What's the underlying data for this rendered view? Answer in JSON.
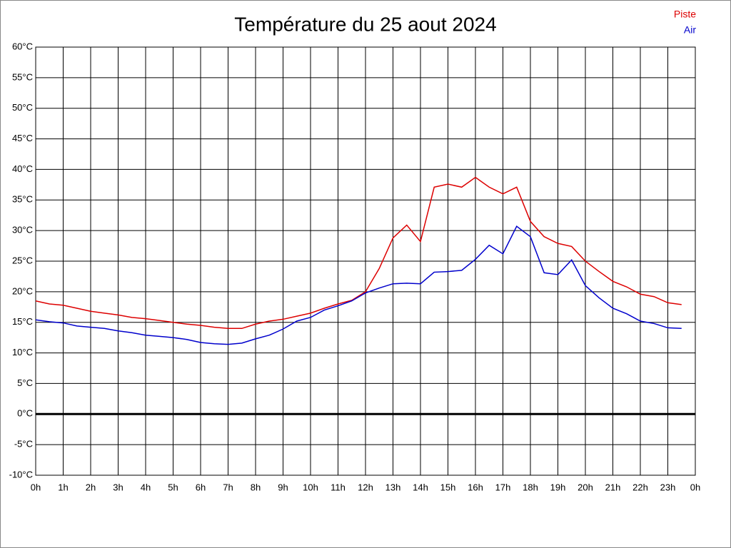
{
  "chart_data": {
    "type": "line",
    "title": "Température du 25 aout 2024",
    "x": [
      0,
      0.5,
      1,
      1.5,
      2,
      2.5,
      3,
      3.5,
      4,
      4.5,
      5,
      5.5,
      6,
      6.5,
      7,
      7.5,
      8,
      8.5,
      9,
      9.5,
      10,
      10.5,
      11,
      11.5,
      12,
      12.5,
      13,
      13.5,
      14,
      14.5,
      15,
      15.5,
      16,
      16.5,
      17,
      17.5,
      18,
      18.5,
      19,
      19.5,
      20,
      20.5,
      21,
      21.5,
      22,
      22.5,
      23,
      23.5
    ],
    "series": [
      {
        "name": "Piste",
        "color": "#dd0000",
        "values": [
          18.5,
          18.0,
          17.8,
          17.3,
          16.8,
          16.5,
          16.2,
          15.8,
          15.6,
          15.3,
          15.0,
          14.7,
          14.5,
          14.2,
          14.0,
          14.0,
          14.7,
          15.2,
          15.5,
          16.0,
          16.5,
          17.3,
          18.0,
          18.6,
          20.0,
          23.8,
          28.8,
          30.9,
          28.2,
          37.1,
          37.6,
          37.1,
          38.7,
          37.1,
          36.0,
          37.1,
          31.5,
          29.0,
          27.9,
          27.4,
          25.0,
          23.3,
          21.7,
          20.8,
          19.6,
          19.2,
          18.2,
          17.9
        ]
      },
      {
        "name": "Air",
        "color": "#0000cc",
        "values": [
          15.4,
          15.1,
          14.9,
          14.4,
          14.2,
          14.0,
          13.6,
          13.3,
          12.9,
          12.7,
          12.5,
          12.2,
          11.7,
          11.5,
          11.4,
          11.6,
          12.3,
          12.9,
          13.9,
          15.2,
          15.8,
          17.0,
          17.7,
          18.5,
          19.8,
          20.6,
          21.3,
          21.4,
          21.3,
          23.2,
          23.3,
          23.5,
          25.3,
          27.6,
          26.2,
          30.7,
          29.0,
          23.1,
          22.8,
          25.2,
          21.0,
          19.0,
          17.3,
          16.4,
          15.2,
          14.8,
          14.1,
          14.0
        ]
      }
    ],
    "xlim": [
      0,
      24
    ],
    "xticks": [
      {
        "value": 0,
        "label": "0h"
      },
      {
        "value": 1,
        "label": "1h"
      },
      {
        "value": 2,
        "label": "2h"
      },
      {
        "value": 3,
        "label": "3h"
      },
      {
        "value": 4,
        "label": "4h"
      },
      {
        "value": 5,
        "label": "5h"
      },
      {
        "value": 6,
        "label": "6h"
      },
      {
        "value": 7,
        "label": "7h"
      },
      {
        "value": 8,
        "label": "8h"
      },
      {
        "value": 9,
        "label": "9h"
      },
      {
        "value": 10,
        "label": "10h"
      },
      {
        "value": 11,
        "label": "11h"
      },
      {
        "value": 12,
        "label": "12h"
      },
      {
        "value": 13,
        "label": "13h"
      },
      {
        "value": 14,
        "label": "14h"
      },
      {
        "value": 15,
        "label": "15h"
      },
      {
        "value": 16,
        "label": "16h"
      },
      {
        "value": 17,
        "label": "17h"
      },
      {
        "value": 18,
        "label": "18h"
      },
      {
        "value": 19,
        "label": "19h"
      },
      {
        "value": 20,
        "label": "20h"
      },
      {
        "value": 21,
        "label": "21h"
      },
      {
        "value": 22,
        "label": "22h"
      },
      {
        "value": 23,
        "label": "23h"
      },
      {
        "value": 24,
        "label": "0h"
      }
    ],
    "ylim": [
      -10,
      60
    ],
    "yticks": [
      {
        "value": -10,
        "label": "-10°C"
      },
      {
        "value": -5,
        "label": "-5°C"
      },
      {
        "value": 0,
        "label": "0°C"
      },
      {
        "value": 5,
        "label": "5°C"
      },
      {
        "value": 10,
        "label": "10°C"
      },
      {
        "value": 15,
        "label": "15°C"
      },
      {
        "value": 20,
        "label": "20°C"
      },
      {
        "value": 25,
        "label": "25°C"
      },
      {
        "value": 30,
        "label": "30°C"
      },
      {
        "value": 35,
        "label": "35°C"
      },
      {
        "value": 40,
        "label": "40°C"
      },
      {
        "value": 45,
        "label": "45°C"
      },
      {
        "value": 50,
        "label": "50°C"
      },
      {
        "value": 55,
        "label": "55°C"
      },
      {
        "value": 60,
        "label": "60°C"
      }
    ],
    "grid": true,
    "zero_line": true,
    "legend": "top-right"
  }
}
